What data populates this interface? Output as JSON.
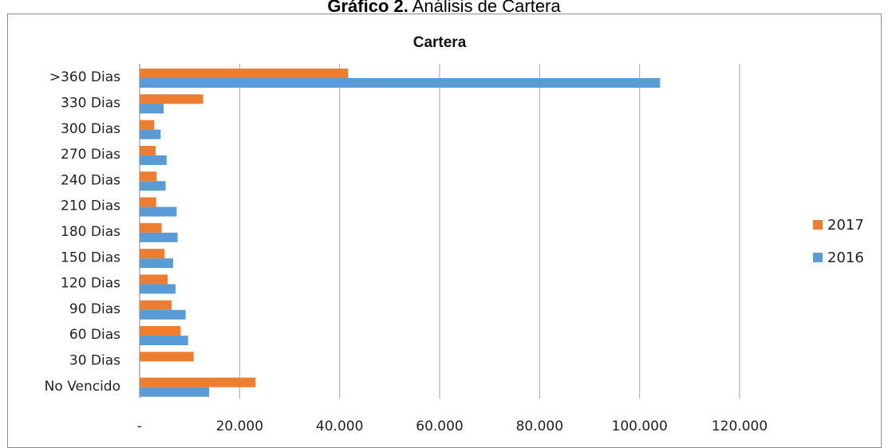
{
  "caption": {
    "bold": "Gráfico 2.",
    "rest": " Análisis de Cartera"
  },
  "chart_data": {
    "type": "bar",
    "orientation": "horizontal",
    "title": "Cartera",
    "categories": [
      "No Vencido",
      "30 Dias",
      "60 Dias",
      "90 Dias",
      "120 Dias",
      "150 Dias",
      "180 Dias",
      "210 Dias",
      "240 Dias",
      "270 Dias",
      "300 Dias",
      "330 Dias",
      ">360 Dias"
    ],
    "series": [
      {
        "name": "2017",
        "color": "#ED7D31",
        "values": [
          23200,
          10800,
          8200,
          6400,
          5600,
          5000,
          4400,
          3300,
          3400,
          3200,
          2900,
          12700,
          41700
        ]
      },
      {
        "name": "2016",
        "color": "#5B9BD5",
        "values": [
          13900,
          0,
          9700,
          9200,
          7200,
          6700,
          7600,
          7400,
          5200,
          5400,
          4200,
          4800,
          104100
        ]
      }
    ],
    "xlim": [
      0,
      120000
    ],
    "x_ticks": [
      "-",
      "20.000",
      "40.000",
      "60.000",
      "80.000",
      "100.000",
      "120.000"
    ],
    "x_tick_values": [
      0,
      20000,
      40000,
      60000,
      80000,
      100000,
      120000
    ],
    "grid": "vertical",
    "legend_position": "right",
    "legend_order": [
      "2017",
      "2016"
    ]
  }
}
